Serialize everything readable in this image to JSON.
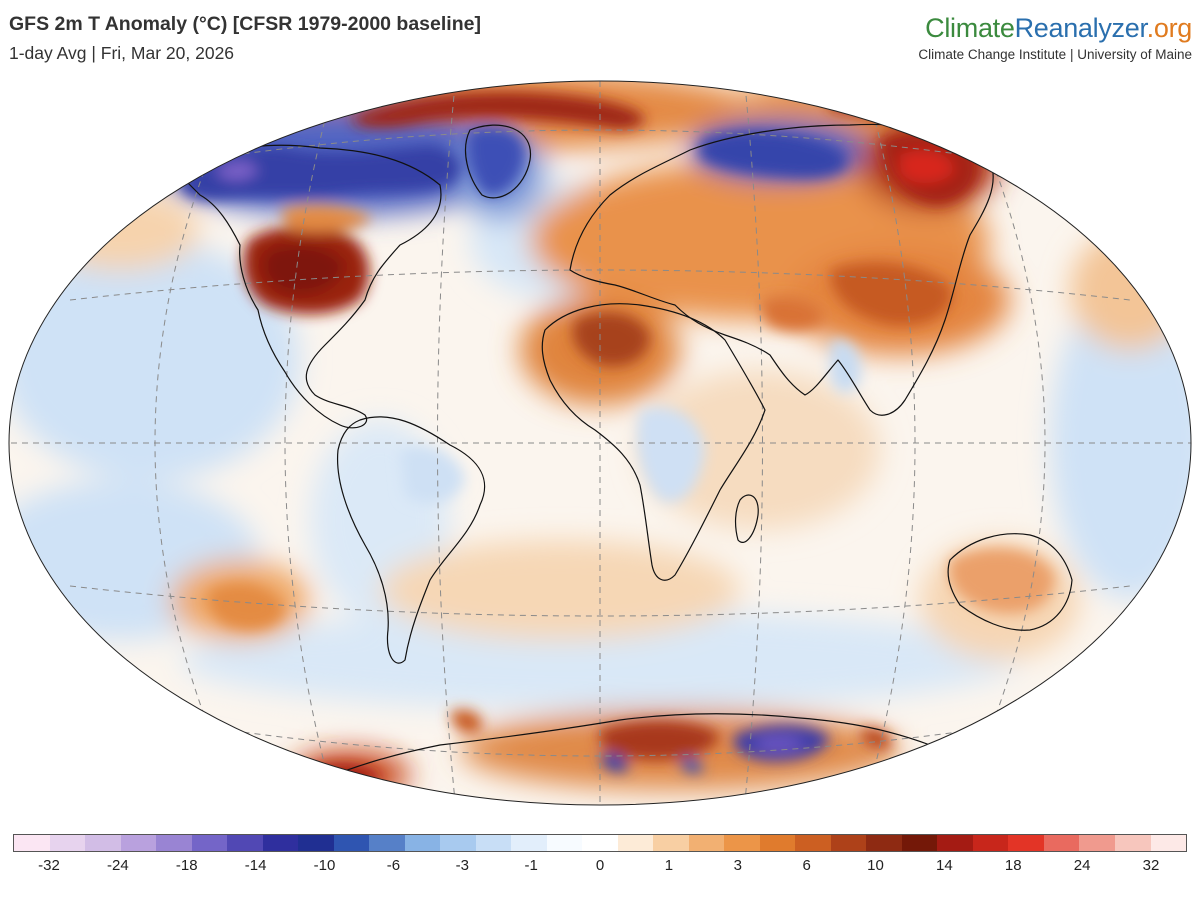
{
  "header": {
    "title": "GFS 2m T Anomaly (°C) [CFSR 1979-2000 baseline]",
    "subtitle": "1-day Avg | Fri, Mar 20, 2026"
  },
  "brand": {
    "logo_parts": [
      "Climate",
      "Reanalyzer",
      ".org"
    ],
    "tagline": "Climate Change Institute | University of Maine",
    "colors": {
      "climate": "#3b8a3e",
      "reanalyzer": "#2a6fae",
      "org": "#e07b1f"
    }
  },
  "map": {
    "projection": "Winkel Tripel",
    "variable": "2m air temperature anomaly",
    "anomalies": [
      {
        "region": "Central/Eastern United States",
        "sign": "warm",
        "level": 12
      },
      {
        "region": "Canada / Hudson Bay",
        "sign": "cold",
        "level": -12
      },
      {
        "region": "Alaska",
        "sign": "cold",
        "level": -16
      },
      {
        "region": "Greenland",
        "sign": "cold",
        "level": -9
      },
      {
        "region": "Arctic Ocean (north of Greenland)",
        "sign": "warm",
        "level": 14
      },
      {
        "region": "Northern Siberia",
        "sign": "cold",
        "level": -11
      },
      {
        "region": "Eastern Siberia",
        "sign": "warm",
        "level": 12
      },
      {
        "region": "Europe and Russia",
        "sign": "warm",
        "level": 5
      },
      {
        "region": "Sahara",
        "sign": "warm",
        "level": 8
      },
      {
        "region": "Central Asia / China",
        "sign": "warm",
        "level": 6
      },
      {
        "region": "Australia",
        "sign": "warm",
        "level": 4
      },
      {
        "region": "East Antarctica (interior)",
        "sign": "cold",
        "level": -12
      },
      {
        "region": "Antarctica (Atlantic sector)",
        "sign": "warm",
        "level": 10
      },
      {
        "region": "Antarctic Peninsula / Weddell",
        "sign": "warm",
        "level": 12
      }
    ]
  },
  "legend": {
    "labels": [
      "-32",
      "-24",
      "-18",
      "-14",
      "-10",
      "-6",
      "-3",
      "-1",
      "0",
      "1",
      "3",
      "6",
      "10",
      "14",
      "18",
      "24",
      "32"
    ],
    "colors": [
      "#fbe6f3",
      "#e7d3ee",
      "#d2bde6",
      "#b9a1de",
      "#9984d3",
      "#7465c8",
      "#5148b4",
      "#2f2f9e",
      "#202f92",
      "#2f55b1",
      "#5680c8",
      "#88b3e5",
      "#a8caef",
      "#c8def6",
      "#e2eefb",
      "#f7fbff",
      "#ffffff",
      "#fdebd7",
      "#f8cfa3",
      "#f2b072",
      "#ec9548",
      "#e07b2d",
      "#cc5f22",
      "#ae4119",
      "#8e2a12",
      "#741808",
      "#a41b13",
      "#c8261b",
      "#e33426",
      "#e96a5f",
      "#f09a8e",
      "#f7c6bd",
      "#fde9e7"
    ]
  }
}
